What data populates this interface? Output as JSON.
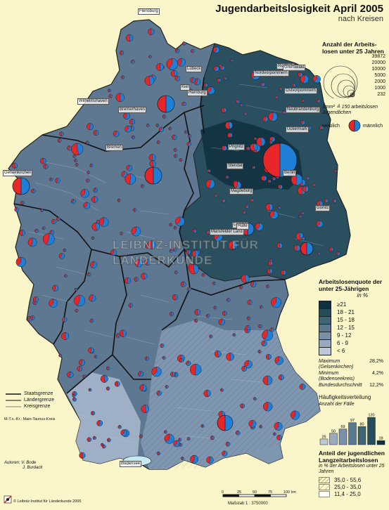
{
  "title": "Jugendarbeitslosigkeit April 2005",
  "subtitle": "nach Kreisen",
  "size_legend": {
    "heading": "Anzahl der Arbeits-losen unter 25 Jahren",
    "values": [
      "39872",
      "20000",
      "10000",
      "5000",
      "2000",
      "1000",
      "232"
    ],
    "note": "1mm² ≙ 150 arbeitslosen Jugendlichen",
    "female_label": "weiblich",
    "male_label": "männlich",
    "female_color": "#e8262a",
    "male_color": "#1f7fd6"
  },
  "rate_legend": {
    "heading": "Arbeitslosenquote der unter 25-Jährigen",
    "unit": "in %",
    "classes": [
      {
        "label": "≥21",
        "color": "#0e3040"
      },
      {
        "label": "18 - 21",
        "color": "#254d5c"
      },
      {
        "label": "15 - 18",
        "color": "#3e6476"
      },
      {
        "label": "12 - 15",
        "color": "#5a7890"
      },
      {
        "label": "9 - 12",
        "color": "#7a90a8"
      },
      {
        "label": "6 - 9",
        "color": "#99a9be"
      },
      {
        "label": "< 6",
        "color": "#bcc8d8"
      }
    ],
    "stats": [
      {
        "label": "Maximum",
        "sub": "(Gelsenkirchen)",
        "value": "28,2%"
      },
      {
        "label": "Minimum",
        "sub": "(Bodenseekreis)",
        "value": "4,2%"
      },
      {
        "label": "Bundesdurchschnitt",
        "sub": "",
        "value": "12,2%"
      }
    ]
  },
  "frequency": {
    "heading": "Häufigkeitsverteilung",
    "subheading": "Anzahl der Fälle",
    "bars": [
      25,
      50,
      69,
      97,
      80,
      120,
      18
    ]
  },
  "longterm_legend": {
    "heading": "Anteil der jugendlichen Langzeitarbeitslosen",
    "sub": "in % der Arbeitslosen unter 25 Jahren",
    "classes": [
      "35,0 - 55,6",
      "25,0 - 35,0",
      "11,4 - 25,0"
    ]
  },
  "boundaries": {
    "state": "Staatsgrenze",
    "land": "Ländergrenze",
    "district": "Kreisgrenze",
    "note": "M-T.s.-Kr.: Main-Taunus-Kreis"
  },
  "authors": {
    "label": "Autoren:",
    "names": [
      "V. Bode",
      "J. Burdack"
    ]
  },
  "scale": {
    "ticks": [
      "0",
      "25",
      "50",
      "75",
      "100 km"
    ],
    "label": "Maßstab  1 : 3750000"
  },
  "copyright": "© Leibniz-Institut für Länderkunde 2005",
  "watermark": "LEIBNIZ-INSTITUT FÜR LÄNDERKUNDE",
  "places": [
    {
      "name": "Flensburg"
    },
    {
      "name": "Nordvorpommern"
    },
    {
      "name": "Rostock"
    },
    {
      "name": "Greifswald"
    },
    {
      "name": "Ostvorpommern"
    },
    {
      "name": "Neubrandenburg"
    },
    {
      "name": "Uckermark"
    },
    {
      "name": "Prignitz"
    },
    {
      "name": "Stendal"
    },
    {
      "name": "Berlin"
    },
    {
      "name": "Magdeburg"
    },
    {
      "name": "Gelsenkirchen"
    },
    {
      "name": "Leipzig"
    },
    {
      "name": "Mansfelder Land"
    },
    {
      "name": "Halle"
    },
    {
      "name": "Görlitz"
    },
    {
      "name": "Bremerhaven"
    },
    {
      "name": "Hamburg"
    },
    {
      "name": "Bremen"
    },
    {
      "name": "Wilhelmshaven"
    },
    {
      "name": "Lübeck"
    },
    {
      "name": "Kiel"
    },
    {
      "name": "Bodensee"
    }
  ]
}
